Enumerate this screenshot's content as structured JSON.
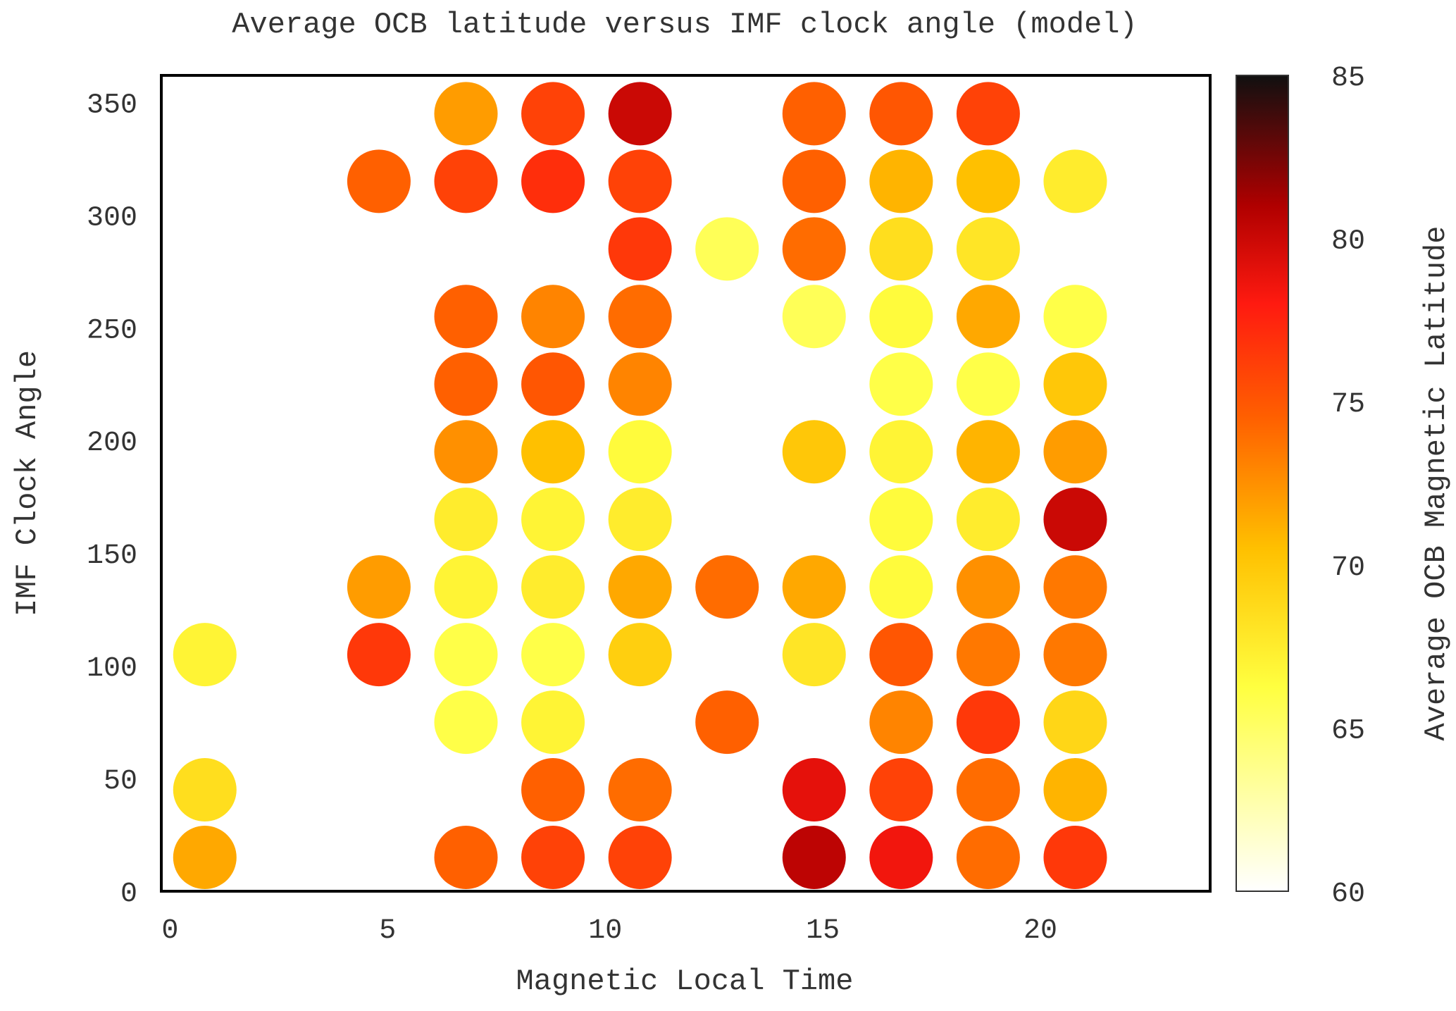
{
  "chart_data": {
    "type": "scatter",
    "title": "Average OCB latitude versus IMF clock angle (model)",
    "xlabel": "Magnetic Local Time",
    "ylabel": "IMF Clock Angle",
    "xlim": [
      -0.2,
      23.9
    ],
    "ylim": [
      0,
      362
    ],
    "xticks": [
      "0",
      "5",
      "10",
      "15",
      "20"
    ],
    "yticks": [
      "0",
      "50",
      "100",
      "150",
      "200",
      "250",
      "300",
      "350"
    ],
    "grid": false,
    "colorbar": {
      "label": "Average OCB Magnetic Latitude",
      "range": [
        60,
        85
      ],
      "ticks": [
        "60",
        "65",
        "70",
        "75",
        "80",
        "85"
      ],
      "colormap": "hot-reversed"
    },
    "point_fields": [
      "x",
      "y",
      "value"
    ],
    "points": [
      [
        0.8,
        15,
        71.5
      ],
      [
        0.8,
        45,
        68.5
      ],
      [
        0.8,
        105,
        67.0
      ],
      [
        4.8,
        105,
        76.5
      ],
      [
        4.8,
        135,
        72.0
      ],
      [
        4.8,
        315,
        74.5
      ],
      [
        6.8,
        15,
        74.5
      ],
      [
        6.8,
        75,
        66.0
      ],
      [
        6.8,
        105,
        66.0
      ],
      [
        6.8,
        135,
        67.0
      ],
      [
        6.8,
        165,
        67.5
      ],
      [
        6.8,
        195,
        72.5
      ],
      [
        6.8,
        225,
        74.5
      ],
      [
        6.8,
        255,
        74.5
      ],
      [
        6.8,
        345,
        72.0
      ],
      [
        6.8,
        315,
        76.0
      ],
      [
        8.8,
        15,
        76.0
      ],
      [
        8.8,
        45,
        74.5
      ],
      [
        8.8,
        75,
        67.0
      ],
      [
        8.8,
        105,
        66.0
      ],
      [
        8.8,
        135,
        67.5
      ],
      [
        8.8,
        165,
        67.0
      ],
      [
        8.8,
        195,
        70.5
      ],
      [
        8.8,
        225,
        75.0
      ],
      [
        8.8,
        255,
        73.0
      ],
      [
        8.8,
        315,
        77.0
      ],
      [
        8.8,
        345,
        76.0
      ],
      [
        10.8,
        15,
        76.0
      ],
      [
        10.8,
        45,
        74.0
      ],
      [
        10.8,
        105,
        69.5
      ],
      [
        10.8,
        135,
        71.5
      ],
      [
        10.8,
        165,
        67.5
      ],
      [
        10.8,
        195,
        66.5
      ],
      [
        10.8,
        225,
        73.0
      ],
      [
        10.8,
        255,
        74.0
      ],
      [
        10.8,
        285,
        76.5
      ],
      [
        10.8,
        315,
        76.0
      ],
      [
        10.8,
        345,
        80.0
      ],
      [
        12.8,
        75,
        74.5
      ],
      [
        12.8,
        135,
        74.0
      ],
      [
        12.8,
        285,
        65.5
      ],
      [
        14.8,
        15,
        80.5
      ],
      [
        14.8,
        45,
        79.0
      ],
      [
        14.8,
        105,
        68.0
      ],
      [
        14.8,
        135,
        71.5
      ],
      [
        14.8,
        195,
        70.0
      ],
      [
        14.8,
        255,
        65.5
      ],
      [
        14.8,
        285,
        74.0
      ],
      [
        14.8,
        315,
        74.5
      ],
      [
        14.8,
        345,
        74.5
      ],
      [
        16.8,
        15,
        78.5
      ],
      [
        16.8,
        45,
        76.0
      ],
      [
        16.8,
        75,
        73.0
      ],
      [
        16.8,
        105,
        75.0
      ],
      [
        16.8,
        135,
        66.5
      ],
      [
        16.8,
        165,
        66.5
      ],
      [
        16.8,
        195,
        67.0
      ],
      [
        16.8,
        225,
        66.0
      ],
      [
        16.8,
        255,
        66.5
      ],
      [
        16.8,
        285,
        68.5
      ],
      [
        16.8,
        315,
        71.0
      ],
      [
        16.8,
        345,
        75.0
      ],
      [
        18.8,
        15,
        74.0
      ],
      [
        18.8,
        45,
        74.0
      ],
      [
        18.8,
        75,
        76.5
      ],
      [
        18.8,
        105,
        73.5
      ],
      [
        18.8,
        135,
        72.5
      ],
      [
        18.8,
        165,
        67.5
      ],
      [
        18.8,
        195,
        71.0
      ],
      [
        18.8,
        225,
        66.0
      ],
      [
        18.8,
        255,
        71.5
      ],
      [
        18.8,
        285,
        68.0
      ],
      [
        18.8,
        315,
        70.5
      ],
      [
        18.8,
        345,
        76.0
      ],
      [
        20.8,
        15,
        76.5
      ],
      [
        20.8,
        45,
        71.0
      ],
      [
        20.8,
        75,
        69.0
      ],
      [
        20.8,
        105,
        73.5
      ],
      [
        20.8,
        135,
        73.5
      ],
      [
        20.8,
        165,
        80.0
      ],
      [
        20.8,
        195,
        72.0
      ],
      [
        20.8,
        225,
        70.0
      ],
      [
        20.8,
        255,
        66.0
      ],
      [
        20.8,
        315,
        67.5
      ]
    ]
  }
}
